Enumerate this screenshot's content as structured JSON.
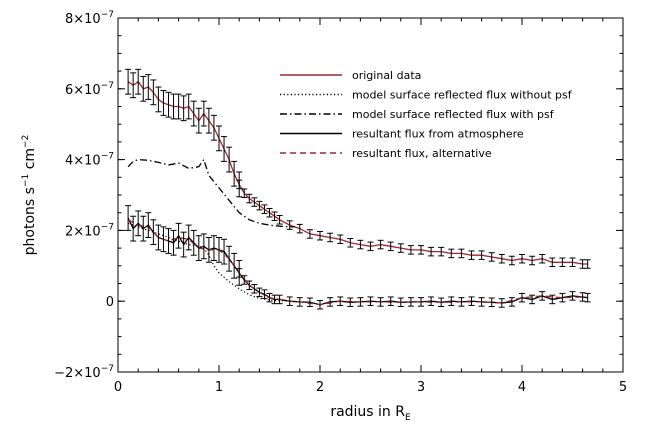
{
  "chart_data": {
    "type": "line",
    "xlabel": "radius in R",
    "xlabel_sub": "E",
    "ylabel": {
      "base": "photons s",
      "exp1": "−1",
      "mid": " cm",
      "exp2": "−2"
    },
    "xlim": [
      0,
      5
    ],
    "ylim": [
      -2e-07,
      8e-07
    ],
    "xticks": [
      {
        "value": 0,
        "label": "0"
      },
      {
        "value": 1,
        "label": "1"
      },
      {
        "value": 2,
        "label": "2"
      },
      {
        "value": 3,
        "label": "3"
      },
      {
        "value": 4,
        "label": "4"
      },
      {
        "value": 5,
        "label": "5"
      }
    ],
    "yticks": [
      {
        "value": -2e-07,
        "mant": "−2×10",
        "exp": "−7"
      },
      {
        "value": 0,
        "mant": "0",
        "exp": ""
      },
      {
        "value": 2e-07,
        "mant": "2×10",
        "exp": "−7"
      },
      {
        "value": 4e-07,
        "mant": "4×10",
        "exp": "−7"
      },
      {
        "value": 6e-07,
        "mant": "6×10",
        "exp": "−7"
      },
      {
        "value": 8e-07,
        "mant": "8×10",
        "exp": "−7"
      }
    ],
    "legend": [
      {
        "label": "original data",
        "color": "#a0282e",
        "dash": "solid"
      },
      {
        "label": "model surface reflected flux without psf",
        "color": "#000000",
        "dash": "dotted"
      },
      {
        "label": "model surface reflected flux with psf",
        "color": "#000000",
        "dash": "dashdot"
      },
      {
        "label": "resultant flux from atmosphere",
        "color": "#000000",
        "dash": "solid"
      },
      {
        "label": "resultant flux, alternative",
        "color": "#a0282e",
        "dash": "dashed"
      }
    ],
    "series": [
      {
        "name": "original data",
        "x": [
          0.1,
          0.15,
          0.2,
          0.25,
          0.3,
          0.35,
          0.4,
          0.45,
          0.5,
          0.55,
          0.6,
          0.65,
          0.7,
          0.75,
          0.8,
          0.85,
          0.9,
          0.95,
          1.0,
          1.05,
          1.1,
          1.15,
          1.2,
          1.25,
          1.3,
          1.35,
          1.4,
          1.45,
          1.5,
          1.55,
          1.6,
          1.7,
          1.8,
          1.9,
          2.0,
          2.1,
          2.2,
          2.3,
          2.4,
          2.5,
          2.6,
          2.7,
          2.8,
          2.9,
          3.0,
          3.1,
          3.2,
          3.3,
          3.4,
          3.5,
          3.6,
          3.7,
          3.8,
          3.9,
          4.0,
          4.1,
          4.2,
          4.3,
          4.4,
          4.5,
          4.6,
          4.65
        ],
        "y": [
          6.2e-07,
          6.1e-07,
          6.2e-07,
          6e-07,
          6.05e-07,
          5.9e-07,
          5.7e-07,
          5.6e-07,
          5.55e-07,
          5.5e-07,
          5.5e-07,
          5.45e-07,
          5.5e-07,
          5.3e-07,
          5.1e-07,
          5.3e-07,
          5.1e-07,
          4.9e-07,
          4.6e-07,
          4.3e-07,
          4e-07,
          3.6e-07,
          3.3e-07,
          3.05e-07,
          2.9e-07,
          2.8e-07,
          2.7e-07,
          2.6e-07,
          2.5e-07,
          2.4e-07,
          2.3e-07,
          2.15e-07,
          2.05e-07,
          1.9e-07,
          1.85e-07,
          1.8e-07,
          1.75e-07,
          1.65e-07,
          1.6e-07,
          1.55e-07,
          1.6e-07,
          1.55e-07,
          1.5e-07,
          1.45e-07,
          1.45e-07,
          1.4e-07,
          1.4e-07,
          1.35e-07,
          1.35e-07,
          1.3e-07,
          1.3e-07,
          1.25e-07,
          1.2e-07,
          1.15e-07,
          1.2e-07,
          1.15e-07,
          1.2e-07,
          1.1e-07,
          1.1e-07,
          1.1e-07,
          1.05e-07,
          1.05e-07
        ]
      },
      {
        "name": "model surface reflected flux without psf",
        "x": [
          0.1,
          0.2,
          0.3,
          0.4,
          0.5,
          0.6,
          0.7,
          0.8,
          0.85,
          0.9,
          0.95,
          1.0,
          1.1,
          1.2,
          1.3,
          1.4,
          1.5,
          1.6,
          1.7
        ],
        "y": [
          2.2e-07,
          2.1e-07,
          2e-07,
          1.9e-07,
          1.8e-07,
          1.7e-07,
          1.6e-07,
          1.55e-07,
          1.5e-07,
          1.3e-07,
          1e-07,
          8e-08,
          5.5e-08,
          3.5e-08,
          1.8e-08,
          8e-09,
          3e-09,
          1e-09,
          0.0
        ]
      },
      {
        "name": "model surface reflected flux with psf",
        "x": [
          0.1,
          0.15,
          0.2,
          0.3,
          0.4,
          0.5,
          0.6,
          0.7,
          0.8,
          0.85,
          0.9,
          1.0,
          1.1,
          1.2,
          1.3,
          1.4,
          1.5,
          1.6,
          1.7,
          1.75
        ],
        "y": [
          3.8e-07,
          3.95e-07,
          4e-07,
          3.98e-07,
          3.92e-07,
          3.85e-07,
          3.9e-07,
          3.75e-07,
          3.8e-07,
          4e-07,
          3.55e-07,
          3.2e-07,
          2.85e-07,
          2.5e-07,
          2.3e-07,
          2.2e-07,
          2.15e-07,
          2.12e-07,
          2.1e-07,
          2.1e-07
        ]
      },
      {
        "name": "resultant flux from atmosphere",
        "x": [
          0.1,
          0.15,
          0.2,
          0.25,
          0.3,
          0.35,
          0.4,
          0.45,
          0.5,
          0.55,
          0.6,
          0.65,
          0.7,
          0.75,
          0.8,
          0.85,
          0.9,
          0.95,
          1.0,
          1.05,
          1.1,
          1.15,
          1.2,
          1.25,
          1.3,
          1.35,
          1.4,
          1.45,
          1.5,
          1.55,
          1.6,
          1.7,
          1.8,
          1.9,
          2.0,
          2.1,
          2.2,
          2.3,
          2.4,
          2.5,
          2.6,
          2.7,
          2.8,
          2.9,
          3.0,
          3.1,
          3.2,
          3.3,
          3.4,
          3.5,
          3.6,
          3.7,
          3.8,
          3.9,
          4.0,
          4.1,
          4.2,
          4.3,
          4.4,
          4.5,
          4.6,
          4.65
        ],
        "y": [
          2.35e-07,
          2.05e-07,
          2.2e-07,
          2.05e-07,
          2.15e-07,
          1.95e-07,
          1.8e-07,
          1.75e-07,
          1.7e-07,
          1.65e-07,
          1.85e-07,
          1.6e-07,
          1.8e-07,
          1.65e-07,
          1.5e-07,
          1.55e-07,
          1.45e-07,
          1.5e-07,
          1.45e-07,
          1.4e-07,
          1.2e-07,
          1e-07,
          8e-08,
          6e-08,
          4.5e-08,
          3.5e-08,
          2.5e-08,
          2e-08,
          1e-08,
          5e-09,
          5e-09,
          0.0,
          -2e-09,
          -3e-09,
          -1e-08,
          -2e-09,
          0.0,
          -3e-09,
          -2e-09,
          0.0,
          -2e-09,
          0.0,
          -3e-09,
          -2e-09,
          -2e-09,
          0.0,
          -3e-09,
          0.0,
          -2e-09,
          0.0,
          -2e-09,
          -3e-09,
          -5e-09,
          -2e-09,
          1e-08,
          5e-09,
          1.5e-08,
          5e-09,
          1e-08,
          1.5e-08,
          1.2e-08,
          1e-08
        ]
      },
      {
        "name": "resultant flux, alternative",
        "x": [
          0.1,
          0.2,
          0.3,
          0.4,
          0.5,
          0.6,
          0.7,
          0.8,
          0.9,
          1.0,
          1.1,
          1.2,
          1.3,
          1.4,
          1.5,
          1.6,
          1.7,
          1.8,
          2.0,
          2.2,
          2.4,
          2.6,
          2.8,
          3.0,
          3.2,
          3.4,
          3.6,
          3.8,
          4.0,
          4.2,
          4.4,
          4.6
        ],
        "y": [
          2.3e-07,
          2.15e-07,
          2.1e-07,
          1.8e-07,
          1.7e-07,
          1.8e-07,
          1.75e-07,
          1.5e-07,
          1.45e-07,
          1.45e-07,
          1.2e-07,
          8e-08,
          4.5e-08,
          2.5e-08,
          1e-08,
          5e-09,
          0.0,
          -2e-09,
          -1e-08,
          0.0,
          -2e-09,
          -2e-09,
          -3e-09,
          -2e-09,
          -3e-09,
          -2e-09,
          -2e-09,
          -5e-09,
          1e-08,
          1.5e-08,
          1e-08,
          1.2e-08
        ]
      }
    ],
    "error_bars": [
      {
        "series": "original data",
        "half_width": 3.5e-08,
        "x_range": [
          0.1,
          1.2
        ]
      },
      {
        "series": "original data",
        "half_width": 1.2e-08,
        "x_range": [
          1.2,
          4.7
        ]
      },
      {
        "series": "resultant flux from atmosphere",
        "half_width": 3.5e-08,
        "x_range": [
          0.1,
          1.2
        ]
      },
      {
        "series": "resultant flux from atmosphere",
        "half_width": 1.2e-08,
        "x_range": [
          1.2,
          4.7
        ]
      }
    ]
  }
}
